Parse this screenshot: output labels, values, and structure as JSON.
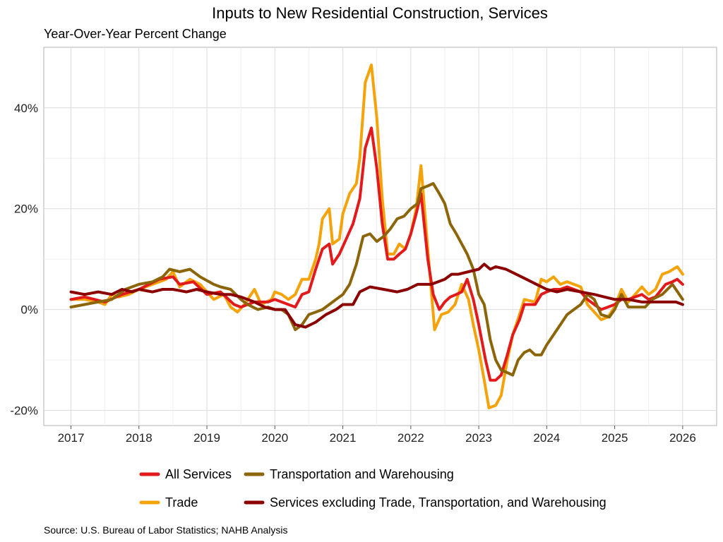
{
  "chart_data": {
    "type": "line",
    "title": "Inputs to New Residential Construction, Services",
    "subtitle": "Year-Over-Year Percent Change",
    "source": "Source: U.S. Bureau of Labor Statistics; NAHB Analysis",
    "xlabel": "",
    "ylabel": "",
    "x_ticks": [
      "2017",
      "2018",
      "2019",
      "2020",
      "2021",
      "2022",
      "2023",
      "2024",
      "2025",
      "2026"
    ],
    "y_ticks": [
      "-20%",
      "0%",
      "20%",
      "40%"
    ],
    "xlim": [
      2016.6,
      2026.5
    ],
    "ylim": [
      -23,
      52
    ],
    "grid": true,
    "legend_position": "bottom",
    "series": [
      {
        "name": "All Services",
        "color": "#e31a1c",
        "points": [
          [
            2017.0,
            2
          ],
          [
            2017.2,
            2.5
          ],
          [
            2017.5,
            1.5
          ],
          [
            2017.75,
            3
          ],
          [
            2018.0,
            4
          ],
          [
            2018.3,
            6
          ],
          [
            2018.5,
            6.5
          ],
          [
            2018.6,
            5
          ],
          [
            2018.8,
            5.5
          ],
          [
            2019.0,
            3
          ],
          [
            2019.2,
            3.5
          ],
          [
            2019.4,
            1
          ],
          [
            2019.5,
            0.5
          ],
          [
            2019.7,
            1.5
          ],
          [
            2019.9,
            1.5
          ],
          [
            2020.0,
            2
          ],
          [
            2020.2,
            1
          ],
          [
            2020.3,
            0.5
          ],
          [
            2020.4,
            3
          ],
          [
            2020.5,
            3.5
          ],
          [
            2020.6,
            8
          ],
          [
            2020.7,
            12
          ],
          [
            2020.8,
            13
          ],
          [
            2020.85,
            9
          ],
          [
            2020.95,
            11
          ],
          [
            2021.05,
            14
          ],
          [
            2021.15,
            17
          ],
          [
            2021.25,
            22
          ],
          [
            2021.33,
            32
          ],
          [
            2021.42,
            36
          ],
          [
            2021.5,
            28
          ],
          [
            2021.58,
            17
          ],
          [
            2021.66,
            10
          ],
          [
            2021.75,
            10
          ],
          [
            2021.83,
            11
          ],
          [
            2021.92,
            12
          ],
          [
            2022.0,
            15
          ],
          [
            2022.08,
            19
          ],
          [
            2022.15,
            23
          ],
          [
            2022.25,
            10
          ],
          [
            2022.33,
            3
          ],
          [
            2022.42,
            0
          ],
          [
            2022.5,
            1.5
          ],
          [
            2022.58,
            2.5
          ],
          [
            2022.67,
            3
          ],
          [
            2022.75,
            3.5
          ],
          [
            2022.83,
            6
          ],
          [
            2022.92,
            2
          ],
          [
            2023.0,
            -3
          ],
          [
            2023.1,
            -10
          ],
          [
            2023.17,
            -14
          ],
          [
            2023.25,
            -14
          ],
          [
            2023.33,
            -13
          ],
          [
            2023.42,
            -9
          ],
          [
            2023.5,
            -5
          ],
          [
            2023.6,
            -2
          ],
          [
            2023.67,
            1
          ],
          [
            2023.83,
            1
          ],
          [
            2023.92,
            3
          ],
          [
            2024.0,
            3.5
          ],
          [
            2024.1,
            4
          ],
          [
            2024.2,
            4
          ],
          [
            2024.3,
            4.5
          ],
          [
            2024.4,
            4
          ],
          [
            2024.5,
            3.5
          ],
          [
            2024.6,
            2
          ],
          [
            2024.7,
            1
          ],
          [
            2024.8,
            0
          ],
          [
            2024.9,
            0.5
          ],
          [
            2025.0,
            1
          ],
          [
            2025.1,
            2
          ],
          [
            2025.2,
            2
          ],
          [
            2025.3,
            2.5
          ],
          [
            2025.4,
            3
          ],
          [
            2025.5,
            2
          ],
          [
            2025.6,
            2.5
          ],
          [
            2025.75,
            5
          ],
          [
            2025.85,
            5.5
          ],
          [
            2025.92,
            6
          ],
          [
            2026.0,
            5
          ]
        ]
      },
      {
        "name": "Trade",
        "color": "#f5a30a",
        "points": [
          [
            2017.0,
            2
          ],
          [
            2017.2,
            2
          ],
          [
            2017.4,
            1.5
          ],
          [
            2017.5,
            1
          ],
          [
            2017.6,
            3
          ],
          [
            2017.7,
            2.5
          ],
          [
            2017.85,
            3
          ],
          [
            2018.0,
            4
          ],
          [
            2018.2,
            5
          ],
          [
            2018.4,
            6
          ],
          [
            2018.5,
            7.5
          ],
          [
            2018.6,
            4.5
          ],
          [
            2018.75,
            6
          ],
          [
            2018.9,
            5
          ],
          [
            2019.1,
            2
          ],
          [
            2019.25,
            3
          ],
          [
            2019.35,
            0.5
          ],
          [
            2019.45,
            -0.5
          ],
          [
            2019.55,
            1
          ],
          [
            2019.7,
            4
          ],
          [
            2019.8,
            1
          ],
          [
            2019.95,
            2
          ],
          [
            2020.0,
            3.5
          ],
          [
            2020.1,
            3
          ],
          [
            2020.2,
            2
          ],
          [
            2020.3,
            3
          ],
          [
            2020.4,
            6
          ],
          [
            2020.5,
            6
          ],
          [
            2020.6,
            10
          ],
          [
            2020.65,
            13
          ],
          [
            2020.7,
            18
          ],
          [
            2020.8,
            20
          ],
          [
            2020.85,
            13
          ],
          [
            2020.95,
            14
          ],
          [
            2021.0,
            19
          ],
          [
            2021.1,
            23
          ],
          [
            2021.2,
            25
          ],
          [
            2021.25,
            30
          ],
          [
            2021.33,
            45
          ],
          [
            2021.42,
            48.5
          ],
          [
            2021.5,
            38
          ],
          [
            2021.58,
            22
          ],
          [
            2021.66,
            11
          ],
          [
            2021.75,
            11
          ],
          [
            2021.83,
            13
          ],
          [
            2021.92,
            12
          ],
          [
            2022.0,
            15
          ],
          [
            2022.08,
            20
          ],
          [
            2022.15,
            28.5
          ],
          [
            2022.25,
            12
          ],
          [
            2022.35,
            -4
          ],
          [
            2022.45,
            -1
          ],
          [
            2022.55,
            -0.5
          ],
          [
            2022.65,
            1
          ],
          [
            2022.75,
            5
          ],
          [
            2022.85,
            2
          ],
          [
            2022.92,
            -3
          ],
          [
            2023.0,
            -8
          ],
          [
            2023.08,
            -14
          ],
          [
            2023.15,
            -19.5
          ],
          [
            2023.25,
            -19
          ],
          [
            2023.33,
            -17
          ],
          [
            2023.42,
            -10
          ],
          [
            2023.5,
            -5
          ],
          [
            2023.6,
            -1
          ],
          [
            2023.67,
            2
          ],
          [
            2023.83,
            1.5
          ],
          [
            2023.92,
            6
          ],
          [
            2024.0,
            5.5
          ],
          [
            2024.1,
            6.5
          ],
          [
            2024.2,
            5
          ],
          [
            2024.3,
            5.5
          ],
          [
            2024.4,
            5
          ],
          [
            2024.5,
            4.5
          ],
          [
            2024.6,
            1
          ],
          [
            2024.7,
            -0.5
          ],
          [
            2024.8,
            -2
          ],
          [
            2024.9,
            -1.5
          ],
          [
            2025.0,
            0.5
          ],
          [
            2025.1,
            4
          ],
          [
            2025.2,
            1.5
          ],
          [
            2025.3,
            3
          ],
          [
            2025.4,
            4.5
          ],
          [
            2025.5,
            3
          ],
          [
            2025.6,
            4
          ],
          [
            2025.7,
            7
          ],
          [
            2025.8,
            7.5
          ],
          [
            2025.92,
            8.5
          ],
          [
            2026.0,
            7
          ]
        ]
      },
      {
        "name": "Transportation and Warehousing",
        "color": "#8b6508",
        "points": [
          [
            2017.0,
            0.5
          ],
          [
            2017.2,
            1
          ],
          [
            2017.4,
            1.5
          ],
          [
            2017.6,
            2
          ],
          [
            2017.8,
            4
          ],
          [
            2018.0,
            5
          ],
          [
            2018.2,
            5.5
          ],
          [
            2018.35,
            6.5
          ],
          [
            2018.45,
            8
          ],
          [
            2018.6,
            7.5
          ],
          [
            2018.75,
            8
          ],
          [
            2018.9,
            6.5
          ],
          [
            2019.1,
            5
          ],
          [
            2019.2,
            4.5
          ],
          [
            2019.35,
            4
          ],
          [
            2019.5,
            2
          ],
          [
            2019.6,
            1
          ],
          [
            2019.75,
            0
          ],
          [
            2019.9,
            0.5
          ],
          [
            2020.0,
            0
          ],
          [
            2020.1,
            0
          ],
          [
            2020.2,
            -1
          ],
          [
            2020.3,
            -4
          ],
          [
            2020.4,
            -3
          ],
          [
            2020.5,
            -1
          ],
          [
            2020.6,
            -0.5
          ],
          [
            2020.7,
            0
          ],
          [
            2020.8,
            1
          ],
          [
            2020.9,
            2
          ],
          [
            2021.0,
            3
          ],
          [
            2021.1,
            5
          ],
          [
            2021.2,
            9
          ],
          [
            2021.3,
            14.5
          ],
          [
            2021.4,
            15
          ],
          [
            2021.5,
            13.5
          ],
          [
            2021.6,
            14.5
          ],
          [
            2021.7,
            16
          ],
          [
            2021.8,
            18
          ],
          [
            2021.9,
            18.5
          ],
          [
            2022.0,
            20
          ],
          [
            2022.1,
            21
          ],
          [
            2022.15,
            24
          ],
          [
            2022.25,
            24.5
          ],
          [
            2022.33,
            25
          ],
          [
            2022.42,
            23
          ],
          [
            2022.5,
            21
          ],
          [
            2022.58,
            17
          ],
          [
            2022.67,
            15
          ],
          [
            2022.75,
            13
          ],
          [
            2022.83,
            11
          ],
          [
            2022.92,
            8
          ],
          [
            2023.0,
            3
          ],
          [
            2023.08,
            1
          ],
          [
            2023.17,
            -6
          ],
          [
            2023.25,
            -10
          ],
          [
            2023.33,
            -12
          ],
          [
            2023.42,
            -12.5
          ],
          [
            2023.5,
            -13
          ],
          [
            2023.58,
            -10
          ],
          [
            2023.67,
            -8.5
          ],
          [
            2023.75,
            -8
          ],
          [
            2023.83,
            -9
          ],
          [
            2023.92,
            -9
          ],
          [
            2024.0,
            -7
          ],
          [
            2024.1,
            -5
          ],
          [
            2024.2,
            -3
          ],
          [
            2024.3,
            -1
          ],
          [
            2024.4,
            0
          ],
          [
            2024.5,
            1
          ],
          [
            2024.6,
            3
          ],
          [
            2024.7,
            2
          ],
          [
            2024.8,
            -1
          ],
          [
            2024.92,
            -1.5
          ],
          [
            2025.0,
            0
          ],
          [
            2025.1,
            3
          ],
          [
            2025.2,
            0.5
          ],
          [
            2025.3,
            0.5
          ],
          [
            2025.45,
            0.5
          ],
          [
            2025.55,
            2
          ],
          [
            2025.7,
            3
          ],
          [
            2025.85,
            5
          ],
          [
            2026.0,
            2
          ]
        ]
      },
      {
        "name": "Services excluding Trade, Transportation, and Warehousing",
        "color": "#8b0000",
        "points": [
          [
            2017.0,
            3.5
          ],
          [
            2017.2,
            3
          ],
          [
            2017.4,
            3.5
          ],
          [
            2017.6,
            3
          ],
          [
            2017.75,
            4
          ],
          [
            2017.9,
            3.5
          ],
          [
            2018.0,
            4
          ],
          [
            2018.2,
            3.5
          ],
          [
            2018.35,
            4
          ],
          [
            2018.5,
            4
          ],
          [
            2018.7,
            3.5
          ],
          [
            2018.85,
            4
          ],
          [
            2019.0,
            3.5
          ],
          [
            2019.2,
            3
          ],
          [
            2019.35,
            3
          ],
          [
            2019.5,
            2.5
          ],
          [
            2019.7,
            1.5
          ],
          [
            2019.85,
            0.5
          ],
          [
            2020.0,
            0
          ],
          [
            2020.15,
            0
          ],
          [
            2020.3,
            -3
          ],
          [
            2020.45,
            -3.5
          ],
          [
            2020.6,
            -2.5
          ],
          [
            2020.75,
            -1
          ],
          [
            2020.9,
            0
          ],
          [
            2021.0,
            1
          ],
          [
            2021.15,
            1
          ],
          [
            2021.25,
            3.5
          ],
          [
            2021.4,
            4.5
          ],
          [
            2021.6,
            4
          ],
          [
            2021.8,
            3.5
          ],
          [
            2021.95,
            4
          ],
          [
            2022.1,
            5
          ],
          [
            2022.3,
            5
          ],
          [
            2022.5,
            6
          ],
          [
            2022.6,
            7
          ],
          [
            2022.7,
            7
          ],
          [
            2022.85,
            7.5
          ],
          [
            2023.0,
            8
          ],
          [
            2023.08,
            9
          ],
          [
            2023.17,
            8
          ],
          [
            2023.25,
            8.5
          ],
          [
            2023.4,
            8
          ],
          [
            2023.55,
            7
          ],
          [
            2023.7,
            6
          ],
          [
            2023.85,
            5
          ],
          [
            2024.0,
            4
          ],
          [
            2024.15,
            3.5
          ],
          [
            2024.3,
            4
          ],
          [
            2024.5,
            3.5
          ],
          [
            2024.7,
            3
          ],
          [
            2024.85,
            2.5
          ],
          [
            2025.0,
            2
          ],
          [
            2025.2,
            2
          ],
          [
            2025.4,
            1.5
          ],
          [
            2025.6,
            1.5
          ],
          [
            2025.75,
            1.5
          ],
          [
            2025.9,
            1.5
          ],
          [
            2026.0,
            1
          ]
        ]
      }
    ]
  }
}
